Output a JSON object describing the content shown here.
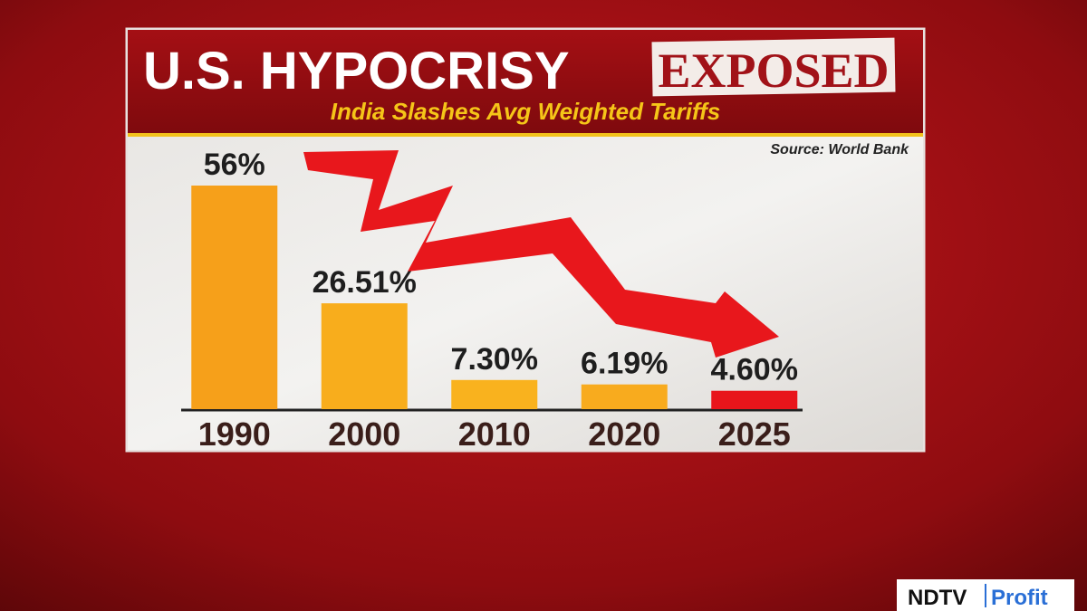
{
  "chart_data": {
    "type": "bar",
    "title": "U.S. HYPOCRISY",
    "stamp": "EXPOSED",
    "subtitle": "India Slashes Avg Weighted Tariffs",
    "source": "Source: World Bank",
    "categories": [
      "1990",
      "2000",
      "2010",
      "2020",
      "2025"
    ],
    "values": [
      56,
      26.51,
      7.3,
      6.19,
      4.6
    ],
    "value_labels": [
      "56%",
      "26.51%",
      "7.30%",
      "6.19%",
      "4.60%"
    ],
    "colors": [
      "#f6a01a",
      "#f8ad1c",
      "#f9b21e",
      "#f8ab1e",
      "#e8151b"
    ]
  },
  "brand": {
    "name": "NDTV",
    "product": "Profit"
  }
}
